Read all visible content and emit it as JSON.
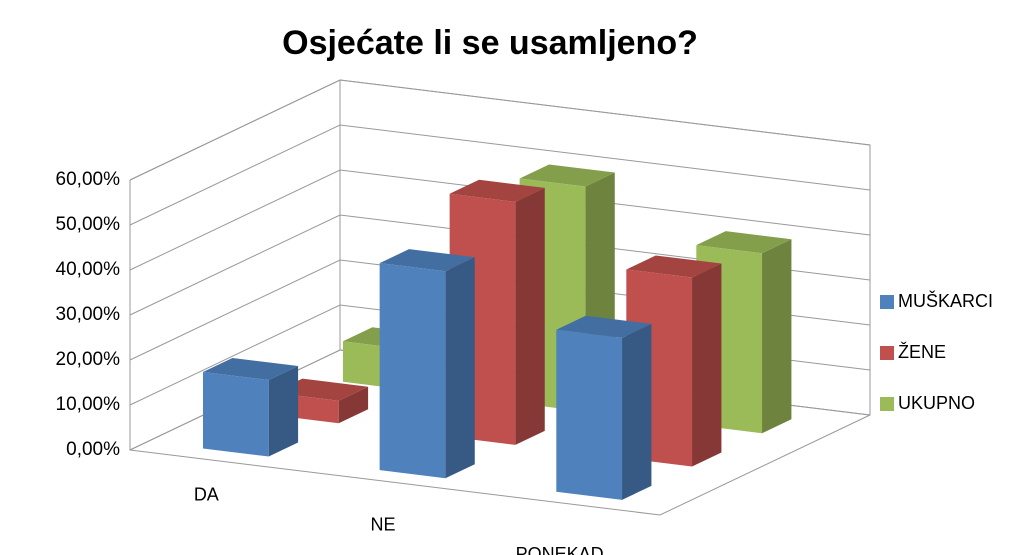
{
  "chart_data": {
    "type": "bar3d",
    "title": "Osjećate li se usamljeno?",
    "categories": [
      "DA",
      "NE",
      "PONEKAD"
    ],
    "series": [
      {
        "name": "MUŠKARCI",
        "color": "#4f81bd",
        "values": [
          17,
          46,
          36
        ]
      },
      {
        "name": "ŽENE",
        "color": "#c0504d",
        "values": [
          5,
          54,
          42
        ]
      },
      {
        "name": "UKUPNO",
        "color": "#9bbb59",
        "values": [
          9,
          50,
          40
        ]
      }
    ],
    "ylim": [
      0,
      60
    ],
    "yticks": [
      {
        "value": 0,
        "label": "0,00%"
      },
      {
        "value": 10,
        "label": "10,00%"
      },
      {
        "value": 20,
        "label": "20,00%"
      },
      {
        "value": 30,
        "label": "30,00%"
      },
      {
        "value": 40,
        "label": "40,00%"
      },
      {
        "value": 50,
        "label": "50,00%"
      },
      {
        "value": 60,
        "label": "60,00%"
      }
    ],
    "grid": true,
    "legend": "right"
  }
}
